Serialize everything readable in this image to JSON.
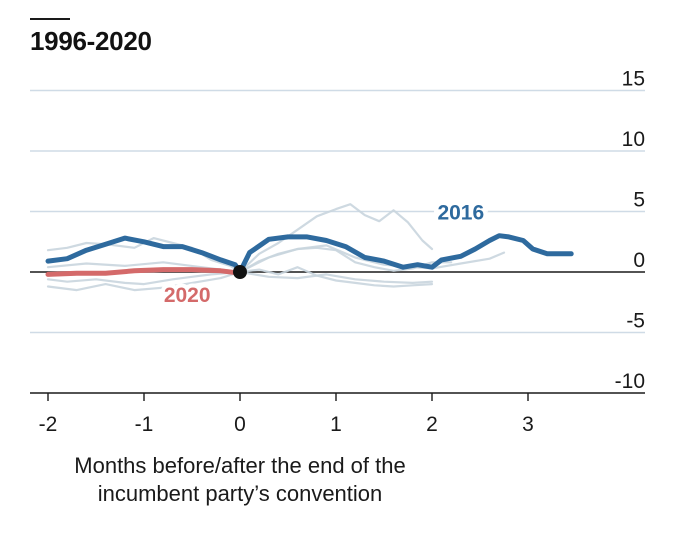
{
  "chart_data": {
    "type": "line",
    "title": "1996-2020",
    "xlabel": "Months before/after the end of the incumbent party’s convention",
    "ylabel": "",
    "xlim": [
      -2.0,
      3.8
    ],
    "ylim": [
      -10,
      15
    ],
    "x_ticks": [
      -2,
      -1,
      0,
      1,
      2,
      3
    ],
    "x_tick_labels": [
      "-2",
      "-1",
      "0",
      "1",
      "2",
      "3"
    ],
    "y_ticks": [
      15,
      10,
      5,
      0,
      -5,
      -10
    ],
    "y_tick_labels": [
      "15",
      "10",
      "5",
      "0",
      "-5",
      "-10"
    ],
    "grid": true,
    "series": [
      {
        "name": "",
        "role": "background",
        "color": "#c9d5de",
        "points": [
          [
            -2.0,
            -0.6
          ],
          [
            -1.8,
            -0.8
          ],
          [
            -1.5,
            -0.6
          ],
          [
            -1.2,
            -0.9
          ],
          [
            -1.0,
            -1.0
          ],
          [
            -0.7,
            -0.6
          ],
          [
            -0.5,
            -0.4
          ],
          [
            -0.3,
            -0.2
          ],
          [
            0.0,
            0.0
          ],
          [
            0.2,
            1.5
          ],
          [
            0.4,
            2.4
          ],
          [
            0.6,
            3.5
          ],
          [
            0.8,
            4.6
          ],
          [
            1.0,
            5.2
          ],
          [
            1.15,
            5.6
          ],
          [
            1.3,
            4.7
          ],
          [
            1.45,
            4.2
          ],
          [
            1.6,
            5.1
          ],
          [
            1.75,
            4.1
          ],
          [
            1.9,
            2.6
          ],
          [
            2.0,
            1.9
          ]
        ]
      },
      {
        "name": "",
        "role": "background",
        "color": "#c9d5de",
        "points": [
          [
            -2.0,
            1.8
          ],
          [
            -1.8,
            2.0
          ],
          [
            -1.6,
            2.4
          ],
          [
            -1.4,
            2.3
          ],
          [
            -1.1,
            2.0
          ],
          [
            -0.9,
            2.8
          ],
          [
            -0.7,
            2.4
          ],
          [
            -0.5,
            2.0
          ],
          [
            -0.3,
            1.0
          ],
          [
            -0.1,
            0.5
          ],
          [
            0.0,
            0.0
          ],
          [
            0.2,
            0.9
          ],
          [
            0.4,
            1.5
          ],
          [
            0.6,
            1.9
          ],
          [
            0.8,
            2.0
          ],
          [
            1.0,
            1.8
          ],
          [
            1.2,
            0.8
          ],
          [
            1.4,
            0.4
          ],
          [
            1.6,
            0.1
          ],
          [
            1.8,
            0.3
          ],
          [
            2.0,
            0.8
          ],
          [
            2.2,
            0.8
          ]
        ]
      },
      {
        "name": "",
        "role": "background",
        "color": "#c9d5de",
        "points": [
          [
            -2.0,
            -1.2
          ],
          [
            -1.7,
            -1.5
          ],
          [
            -1.4,
            -1.0
          ],
          [
            -1.1,
            -1.5
          ],
          [
            -0.8,
            -1.3
          ],
          [
            -0.5,
            -0.9
          ],
          [
            -0.2,
            -0.5
          ],
          [
            0.0,
            0.0
          ],
          [
            0.2,
            0.2
          ],
          [
            0.4,
            -0.2
          ],
          [
            0.6,
            0.4
          ],
          [
            0.8,
            -0.3
          ],
          [
            1.0,
            -0.7
          ],
          [
            1.2,
            -0.9
          ],
          [
            1.4,
            -1.1
          ],
          [
            1.6,
            -1.2
          ],
          [
            1.8,
            -1.1
          ],
          [
            2.0,
            -1.0
          ]
        ]
      },
      {
        "name": "",
        "role": "background",
        "color": "#c9d5de",
        "points": [
          [
            0.0,
            0.0
          ],
          [
            0.3,
            1.2
          ],
          [
            0.6,
            1.9
          ],
          [
            0.9,
            2.2
          ],
          [
            1.2,
            1.2
          ],
          [
            1.5,
            0.6
          ],
          [
            1.8,
            0.4
          ],
          [
            2.0,
            0.3
          ],
          [
            2.3,
            0.7
          ],
          [
            2.6,
            1.1
          ],
          [
            2.75,
            1.6
          ]
        ]
      },
      {
        "name": "",
        "role": "background",
        "color": "#c9d5de",
        "points": [
          [
            -2.0,
            0.4
          ],
          [
            -1.6,
            0.7
          ],
          [
            -1.2,
            0.5
          ],
          [
            -0.8,
            0.8
          ],
          [
            -0.4,
            0.4
          ],
          [
            0.0,
            0.0
          ],
          [
            0.3,
            -0.4
          ],
          [
            0.6,
            -0.5
          ],
          [
            0.9,
            -0.2
          ],
          [
            1.2,
            -0.6
          ],
          [
            1.5,
            -0.8
          ],
          [
            1.8,
            -0.9
          ],
          [
            2.0,
            -0.8
          ]
        ]
      },
      {
        "name": "2016",
        "role": "highlight",
        "color": "#2e6a9e",
        "points": [
          [
            -2.0,
            0.9
          ],
          [
            -1.8,
            1.1
          ],
          [
            -1.6,
            1.8
          ],
          [
            -1.4,
            2.3
          ],
          [
            -1.2,
            2.8
          ],
          [
            -1.0,
            2.5
          ],
          [
            -0.8,
            2.1
          ],
          [
            -0.6,
            2.1
          ],
          [
            -0.4,
            1.6
          ],
          [
            -0.2,
            1.0
          ],
          [
            -0.05,
            0.6
          ],
          [
            0.0,
            0.0
          ],
          [
            0.1,
            1.6
          ],
          [
            0.3,
            2.7
          ],
          [
            0.5,
            2.9
          ],
          [
            0.7,
            2.9
          ],
          [
            0.9,
            2.6
          ],
          [
            1.1,
            2.1
          ],
          [
            1.3,
            1.2
          ],
          [
            1.5,
            0.9
          ],
          [
            1.7,
            0.4
          ],
          [
            1.85,
            0.6
          ],
          [
            2.0,
            0.4
          ],
          [
            2.1,
            1.0
          ],
          [
            2.3,
            1.3
          ],
          [
            2.45,
            1.9
          ],
          [
            2.6,
            2.6
          ],
          [
            2.7,
            3.0
          ],
          [
            2.8,
            2.9
          ],
          [
            2.95,
            2.6
          ],
          [
            3.05,
            1.9
          ],
          [
            3.2,
            1.5
          ],
          [
            3.45,
            1.5
          ]
        ]
      },
      {
        "name": "2020",
        "role": "highlight",
        "color": "#d46a6a",
        "points": [
          [
            -2.0,
            -0.2
          ],
          [
            -1.7,
            -0.1
          ],
          [
            -1.4,
            -0.1
          ],
          [
            -1.1,
            0.1
          ],
          [
            -0.8,
            0.2
          ],
          [
            -0.5,
            0.2
          ],
          [
            -0.2,
            0.1
          ],
          [
            0.0,
            -0.1
          ]
        ]
      }
    ],
    "annotations": [
      {
        "text": "2016",
        "x": 2.3,
        "y": 5.0,
        "color": "#2e6a9e"
      },
      {
        "text": "2020",
        "x": -0.55,
        "y": -1.8,
        "color": "#d46a6a"
      }
    ],
    "origin_marker": {
      "x": 0,
      "y": 0,
      "color": "#111111"
    }
  }
}
